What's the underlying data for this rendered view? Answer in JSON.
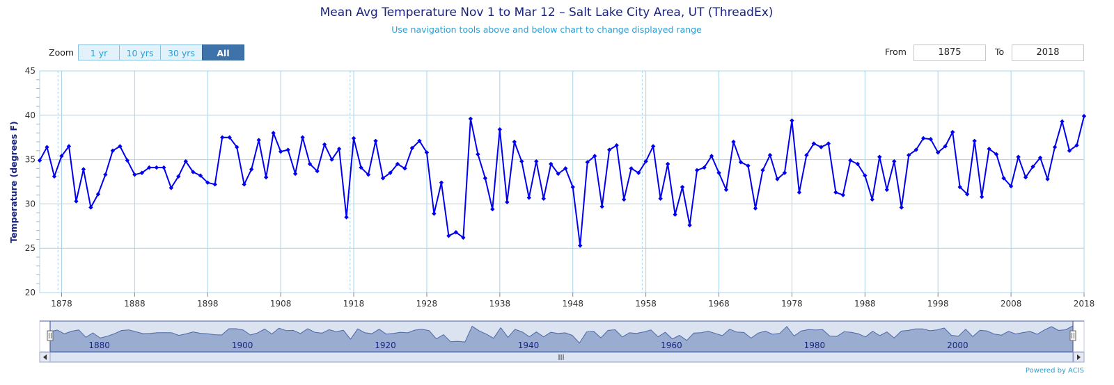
{
  "header": {
    "title": "Mean Avg Temperature Nov 1 to Mar 12 – Salt Lake City Area, UT (ThreadEx)",
    "subtitle": "Use navigation tools above and below chart to change displayed range"
  },
  "zoom": {
    "label": "Zoom",
    "buttons": [
      "1 yr",
      "10 yrs",
      "30 yrs",
      "All"
    ],
    "active": "All"
  },
  "range": {
    "from_label": "From",
    "from_value": "1875",
    "to_label": "To",
    "to_value": "2018"
  },
  "footer": {
    "credit": "Powered by ACIS"
  },
  "colors": {
    "series": "#0000ee",
    "grid": "#a8d4ea",
    "title": "#1a237e",
    "accent": "#2a9fd6",
    "navigator_fill": "#9aadd1",
    "navigator_mask": "#dbe2f0"
  },
  "chart_data": {
    "type": "line",
    "title": "Mean Avg Temperature Nov 1 to Mar 12 – Salt Lake City Area, UT (ThreadEx)",
    "xlabel": "",
    "ylabel": "Temperature (degrees F)",
    "xlim": [
      1875,
      2018
    ],
    "ylim": [
      20,
      45
    ],
    "x_ticks": [
      "1878",
      "1888",
      "1898",
      "1908",
      "1918",
      "1928",
      "1938",
      "1948",
      "1958",
      "1968",
      "1978",
      "1988",
      "1998",
      "2008",
      "2018"
    ],
    "y_ticks": [
      20,
      25,
      30,
      35,
      40,
      45
    ],
    "navigator_ticks": [
      "1880",
      "1900",
      "1920",
      "1940",
      "1960",
      "1980",
      "2000"
    ],
    "series": [
      {
        "name": "Mean Avg Temperature",
        "start_year": 1875,
        "values": [
          34.9,
          36.4,
          33.1,
          35.4,
          36.5,
          30.3,
          33.9,
          29.6,
          31.1,
          33.3,
          36.0,
          36.5,
          34.9,
          33.3,
          33.5,
          34.1,
          34.1,
          34.1,
          31.8,
          33.1,
          34.8,
          33.6,
          33.2,
          32.4,
          32.2,
          37.5,
          37.5,
          36.4,
          32.2,
          33.9,
          37.2,
          33.0,
          38.0,
          35.9,
          36.1,
          33.4,
          37.5,
          34.5,
          33.7,
          36.7,
          35.0,
          36.2,
          28.5,
          37.4,
          34.1,
          33.3,
          37.1,
          32.9,
          33.5,
          34.5,
          34.0,
          36.3,
          37.1,
          35.8,
          28.9,
          32.4,
          26.4,
          26.8,
          26.2,
          39.6,
          35.6,
          32.9,
          29.4,
          38.4,
          30.2,
          37.0,
          34.8,
          30.7,
          34.8,
          30.6,
          34.5,
          33.4,
          34.0,
          31.9,
          25.3,
          34.7,
          35.4,
          29.7,
          36.1,
          36.6,
          30.5,
          34.0,
          33.5,
          34.8,
          36.5,
          30.6,
          34.5,
          28.8,
          31.9,
          27.6,
          33.8,
          34.1,
          35.4,
          33.5,
          31.6,
          37.0,
          34.7,
          34.3,
          29.5,
          33.8,
          35.5,
          32.8,
          33.5,
          39.4,
          31.3,
          35.5,
          36.8,
          36.4,
          36.8,
          31.3,
          31.0,
          34.9,
          34.5,
          33.2,
          30.5,
          35.3,
          31.6,
          34.8,
          29.6,
          35.5,
          36.1,
          37.4,
          37.3,
          35.8,
          36.5,
          38.1,
          31.9,
          31.1,
          37.1,
          30.8,
          36.2,
          35.6,
          32.9,
          32.0,
          35.3,
          33.0,
          34.2,
          35.2,
          32.8,
          36.4,
          39.3,
          36.0,
          36.6,
          39.9
        ]
      }
    ]
  }
}
